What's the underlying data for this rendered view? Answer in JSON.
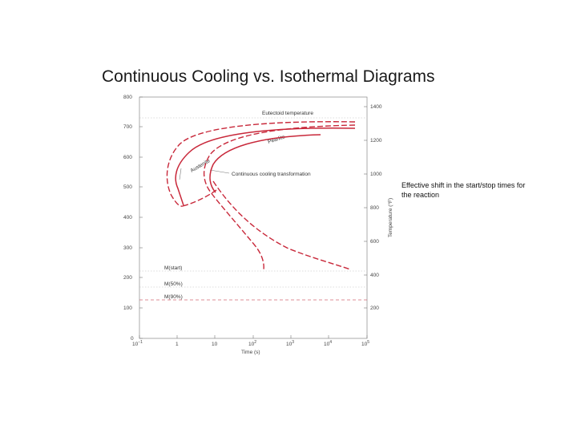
{
  "slide": {
    "title": "Continuous Cooling vs. Isothermal Diagrams",
    "note": "Effective shift in the start/stop times for the reaction"
  },
  "diagram": {
    "x_axis_title": "Time (s)",
    "x_ticks": [
      {
        "base": "10",
        "exp": "−1"
      },
      {
        "base": "1",
        "exp": ""
      },
      {
        "base": "10",
        "exp": ""
      },
      {
        "base": "10",
        "exp": "2"
      },
      {
        "base": "10",
        "exp": "3"
      },
      {
        "base": "10",
        "exp": "4"
      },
      {
        "base": "10",
        "exp": "5"
      }
    ],
    "left_y_ticks": [
      "800",
      "700",
      "600",
      "500",
      "400",
      "300",
      "200",
      "100",
      "0"
    ],
    "right_y_title": "Temperature (°F)",
    "right_y_ticks": [
      "1400",
      "1200",
      "1000",
      "800",
      "600",
      "400",
      "200"
    ],
    "labels": {
      "eutectoid": "Eutectoid temperature",
      "pearlite": "Pearlite",
      "austenite": "Austenite",
      "cct": "Continuous cooling transformation",
      "ms": "M(start)",
      "m50": "M(50%)",
      "m90": "M(90%)"
    }
  }
}
